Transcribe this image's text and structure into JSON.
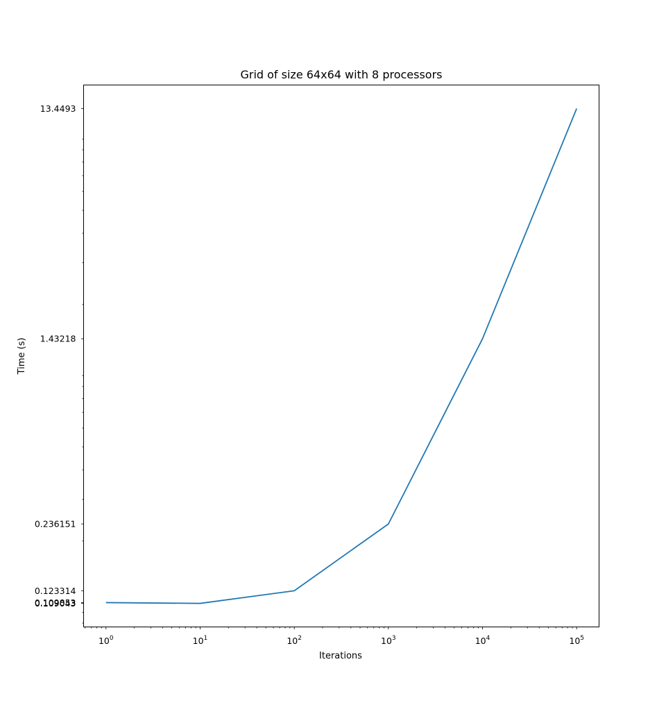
{
  "chart_data": {
    "type": "line",
    "title": "Grid of size 64x64 with 8 processors",
    "xlabel": "Iterations",
    "ylabel": "Time (s)",
    "xscale": "log",
    "yscale": "log",
    "grid": false,
    "legend": "none",
    "x": [
      1,
      10,
      100,
      1000,
      10000,
      100000
    ],
    "series": [
      {
        "values": [
          0.109853,
          0.109043,
          0.123314,
          0.236151,
          1.43218,
          13.4493
        ],
        "color": "#1f77b4"
      }
    ],
    "x_tick_labels": [
      {
        "value": 1,
        "base": "10",
        "exp": "0"
      },
      {
        "value": 10,
        "base": "10",
        "exp": "1"
      },
      {
        "value": 100,
        "base": "10",
        "exp": "2"
      },
      {
        "value": 1000,
        "base": "10",
        "exp": "3"
      },
      {
        "value": 10000,
        "base": "10",
        "exp": "4"
      },
      {
        "value": 100000,
        "base": "10",
        "exp": "5"
      }
    ],
    "y_tick_labels": [
      {
        "value": 0.109043,
        "label": "0.109043"
      },
      {
        "value": 0.109853,
        "label": "0.109853"
      },
      {
        "value": 0.123314,
        "label": "0.123314"
      },
      {
        "value": 0.236151,
        "label": "0.236151"
      },
      {
        "value": 1.43218,
        "label": "1.43218"
      },
      {
        "value": 13.4493,
        "label": "13.4493"
      }
    ]
  }
}
